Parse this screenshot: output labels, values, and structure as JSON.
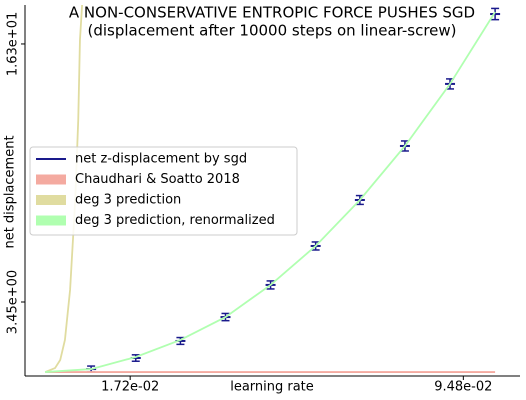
{
  "chart_data": {
    "type": "line",
    "title": "A NON-CONSERVATIVE ENTROPIC FORCE PUSHES SGD",
    "subtitle": "(displacement after 10000 steps on linear-screw)",
    "xlabel": "learning rate",
    "ylabel": "net displacement",
    "xlim": [
      -0.0073,
      0.108
    ],
    "ylim": [
      -0.235,
      18.24
    ],
    "xticks": [
      {
        "value": 0.0172,
        "label": "1.72e-02"
      },
      {
        "value": 0.0948,
        "label": "9.48e-02"
      }
    ],
    "yticks": [
      {
        "value": 3.45,
        "label": "3.45e+00"
      },
      {
        "value": 16.3,
        "label": "1.63e+01"
      }
    ],
    "legend": "center left",
    "series": [
      {
        "name": "net z-displacement by sgd",
        "color": "#1a1a8c",
        "style": "errorbar",
        "x": [
          0.0081,
          0.0185,
          0.0289,
          0.0394,
          0.0499,
          0.0604,
          0.0707,
          0.0812,
          0.0917,
          0.1022
        ],
        "values": [
          0.11,
          0.66,
          1.51,
          2.7,
          4.3,
          6.24,
          8.53,
          11.22,
          14.31,
          17.79
        ],
        "errors": [
          0.05,
          0.06,
          0.07,
          0.08,
          0.1,
          0.1,
          0.12,
          0.15,
          0.15,
          0.18
        ]
      },
      {
        "name": "Chaudhari & Soatto 2018",
        "color": "#f4aaa0",
        "style": "patch",
        "x": [
          -0.0026,
          0.1022
        ],
        "values": [
          -0.04,
          -0.04
        ]
      },
      {
        "name": "deg 3 prediction",
        "color": "#e0dca0",
        "style": "patch",
        "x": [
          -0.0026,
          -0.0003,
          0.0009,
          0.002,
          0.0032,
          0.0044,
          0.0051,
          0.0055,
          0.006
        ],
        "values": [
          -0.04,
          0.16,
          0.56,
          1.56,
          4.05,
          8.53,
          12.51,
          16.5,
          18.24
        ]
      },
      {
        "name": "deg 3 prediction, renormalized",
        "color": "#b0ffb0",
        "style": "patch",
        "x": [
          -0.0026,
          0.0081,
          0.0185,
          0.0289,
          0.0394,
          0.0499,
          0.0604,
          0.0707,
          0.0812,
          0.0917,
          0.1022
        ],
        "values": [
          -0.04,
          0.11,
          0.71,
          1.56,
          2.7,
          4.3,
          6.24,
          8.53,
          11.22,
          14.31,
          17.89
        ]
      }
    ]
  }
}
